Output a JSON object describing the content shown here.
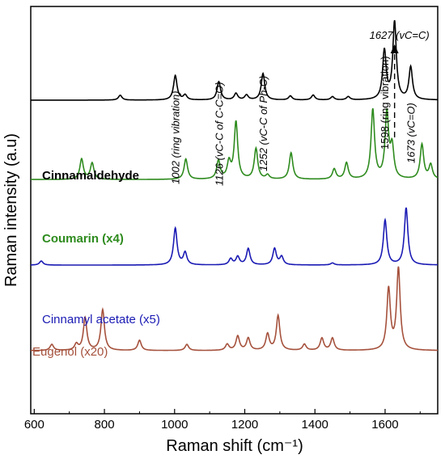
{
  "chart_data": {
    "type": "line",
    "xlabel": "Raman shift (cm⁻¹)",
    "ylabel": "Raman intensity (a.u)",
    "xlim": [
      590,
      1750
    ],
    "x_ticks": [
      600,
      800,
      1000,
      1200,
      1400,
      1600
    ],
    "x_tick_labels": [
      "600",
      "800",
      "1000",
      "1200",
      "1400",
      "1600"
    ],
    "grid": false,
    "series": [
      {
        "name": "Cinnamaldehyde",
        "color": "#000000",
        "baseline": 0.77,
        "peaks": [
          {
            "x": 845,
            "h": 0.012
          },
          {
            "x": 1002,
            "h": 0.06
          },
          {
            "x": 1030,
            "h": 0.012
          },
          {
            "x": 1126,
            "h": 0.045
          },
          {
            "x": 1175,
            "h": 0.016
          },
          {
            "x": 1205,
            "h": 0.012
          },
          {
            "x": 1252,
            "h": 0.065
          },
          {
            "x": 1330,
            "h": 0.01
          },
          {
            "x": 1395,
            "h": 0.012
          },
          {
            "x": 1450,
            "h": 0.008
          },
          {
            "x": 1495,
            "h": 0.008
          },
          {
            "x": 1598,
            "h": 0.12
          },
          {
            "x": 1627,
            "h": 0.19
          },
          {
            "x": 1673,
            "h": 0.08
          }
        ]
      },
      {
        "name": "Coumarin (x4)",
        "color": "#2e8b1e",
        "baseline": 0.575,
        "peaks": [
          {
            "x": 735,
            "h": 0.05
          },
          {
            "x": 765,
            "h": 0.04
          },
          {
            "x": 1032,
            "h": 0.05
          },
          {
            "x": 1125,
            "h": 0.045
          },
          {
            "x": 1155,
            "h": 0.04
          },
          {
            "x": 1175,
            "h": 0.14
          },
          {
            "x": 1232,
            "h": 0.075
          },
          {
            "x": 1265,
            "h": 0.01
          },
          {
            "x": 1332,
            "h": 0.065
          },
          {
            "x": 1455,
            "h": 0.025
          },
          {
            "x": 1490,
            "h": 0.04
          },
          {
            "x": 1565,
            "h": 0.17
          },
          {
            "x": 1605,
            "h": 0.16
          },
          {
            "x": 1620,
            "h": 0.075
          },
          {
            "x": 1705,
            "h": 0.085
          },
          {
            "x": 1730,
            "h": 0.035
          }
        ]
      },
      {
        "name": "Cinnamyl acetate (x5)",
        "color": "#1a1ab4",
        "baseline": 0.365,
        "peaks": [
          {
            "x": 620,
            "h": 0.01
          },
          {
            "x": 1002,
            "h": 0.09
          },
          {
            "x": 1030,
            "h": 0.03
          },
          {
            "x": 1160,
            "h": 0.015
          },
          {
            "x": 1180,
            "h": 0.02
          },
          {
            "x": 1210,
            "h": 0.04
          },
          {
            "x": 1285,
            "h": 0.04
          },
          {
            "x": 1305,
            "h": 0.02
          },
          {
            "x": 1450,
            "h": 0.005
          },
          {
            "x": 1600,
            "h": 0.11
          },
          {
            "x": 1660,
            "h": 0.14
          }
        ]
      },
      {
        "name": "Eugenol (x20)",
        "color": "#a5513c",
        "baseline": 0.155,
        "peaks": [
          {
            "x": 650,
            "h": 0.015
          },
          {
            "x": 720,
            "h": 0.015
          },
          {
            "x": 745,
            "h": 0.08
          },
          {
            "x": 795,
            "h": 0.1
          },
          {
            "x": 900,
            "h": 0.025
          },
          {
            "x": 1035,
            "h": 0.015
          },
          {
            "x": 1150,
            "h": 0.015
          },
          {
            "x": 1180,
            "h": 0.035
          },
          {
            "x": 1210,
            "h": 0.03
          },
          {
            "x": 1265,
            "h": 0.04
          },
          {
            "x": 1295,
            "h": 0.085
          },
          {
            "x": 1370,
            "h": 0.015
          },
          {
            "x": 1420,
            "h": 0.03
          },
          {
            "x": 1450,
            "h": 0.03
          },
          {
            "x": 1610,
            "h": 0.15
          },
          {
            "x": 1638,
            "h": 0.2
          }
        ]
      }
    ],
    "annotations": [
      {
        "x": 1002,
        "text": "1002 (ring vibration)",
        "style": "italic"
      },
      {
        "x": 1126,
        "text": "1126 (vC-C of C-C=O)",
        "style": "italic"
      },
      {
        "x": 1252,
        "text": "1252 (vC-C of Ph-C)",
        "style": "italic"
      },
      {
        "x": 1598,
        "text": "1598 (ring vibration)",
        "style": "upright"
      },
      {
        "x": 1673,
        "text": "1673 (vC=O)",
        "style": "italic"
      },
      {
        "x": 1627,
        "text": "1627 (vC=C)",
        "style": "italic",
        "arrow": true
      }
    ]
  }
}
